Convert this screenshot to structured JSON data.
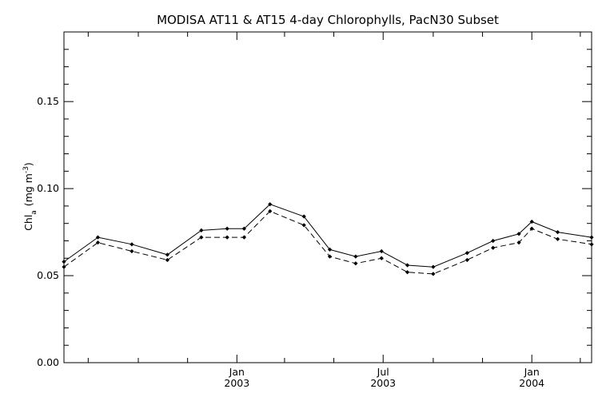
{
  "chart_data": {
    "type": "line",
    "title": "MODISA AT11 & AT15 4-day Chlorophylls, PacN30 Subset",
    "xlabel": "",
    "ylabel": {
      "main": "Chl",
      "sub": "a",
      "units_prefix": "(mg m",
      "units_exp": "-3",
      "units_suffix": ")"
    },
    "ylim": [
      0.0,
      0.19
    ],
    "xlim": [
      "2002-06-01",
      "2004-03-15"
    ],
    "y_ticks": [
      {
        "value": 0.0,
        "label": "0.00"
      },
      {
        "value": 0.05,
        "label": "0.05"
      },
      {
        "value": 0.1,
        "label": "0.10"
      },
      {
        "value": 0.15,
        "label": "0.15"
      }
    ],
    "x_ticks": [
      {
        "date": "2003-01-01",
        "month": "Jan",
        "year": "2003"
      },
      {
        "date": "2003-07-01",
        "month": "Jul",
        "year": "2003"
      },
      {
        "date": "2004-01-01",
        "month": "Jan",
        "year": "2004"
      }
    ],
    "x_minor_ticks": [
      "2002-07-01",
      "2002-09-01",
      "2002-11-01",
      "2003-03-01",
      "2003-05-01",
      "2003-09-01",
      "2003-11-01",
      "2004-03-01"
    ],
    "grid": false,
    "series": [
      {
        "line_style": "solid",
        "color": "#000000",
        "x": [
          "2002-06-01",
          "2002-07-13",
          "2002-08-24",
          "2002-10-07",
          "2002-11-18",
          "2002-12-20",
          "2003-01-10",
          "2003-02-11",
          "2003-03-25",
          "2003-04-26",
          "2003-05-28",
          "2003-06-29",
          "2003-07-31",
          "2003-09-01",
          "2003-10-13",
          "2003-11-14",
          "2003-12-16",
          "2004-01-01",
          "2004-02-02",
          "2004-03-15"
        ],
        "values": [
          0.058,
          0.072,
          0.068,
          0.062,
          0.076,
          0.077,
          0.077,
          0.091,
          0.084,
          0.065,
          0.061,
          0.064,
          0.056,
          0.055,
          0.063,
          0.07,
          0.074,
          0.081,
          0.075,
          0.072
        ]
      },
      {
        "line_style": "dashed",
        "color": "#000000",
        "x": [
          "2002-06-01",
          "2002-07-13",
          "2002-08-24",
          "2002-10-07",
          "2002-11-18",
          "2002-12-20",
          "2003-01-10",
          "2003-02-11",
          "2003-03-25",
          "2003-04-26",
          "2003-05-28",
          "2003-06-29",
          "2003-07-31",
          "2003-09-01",
          "2003-10-13",
          "2003-11-14",
          "2003-12-16",
          "2004-01-01",
          "2004-02-02",
          "2004-03-15"
        ],
        "values": [
          0.055,
          0.069,
          0.064,
          0.059,
          0.072,
          0.072,
          0.072,
          0.087,
          0.079,
          0.061,
          0.057,
          0.06,
          0.052,
          0.051,
          0.059,
          0.066,
          0.069,
          0.077,
          0.071,
          0.068
        ]
      }
    ]
  }
}
